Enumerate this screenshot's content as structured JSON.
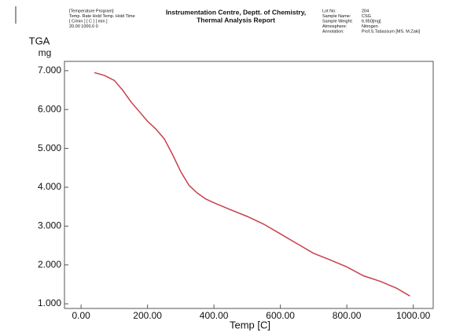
{
  "header": {
    "program": [
      "[Temperature Program]",
      "Temp. Rate  Hold Temp.   Hold Time",
      "[ C/min ]    [ C ]         [ min ]",
      "20.00          1000.0          0"
    ],
    "title": [
      "Instrumentation Centre, Deptt. of Chemistry,",
      "Thermal Analysis Report"
    ],
    "info_labels": [
      "Lot No:",
      "Sample Name:",
      "Sample Weight:",
      "Atmosphere:",
      "Annotation:"
    ],
    "info_values": [
      "204",
      "CSG",
      "6.950[mg]",
      "Nitrogen",
      "Prof.S.Tabassum [MS. M.Zaki]"
    ]
  },
  "chart_data": {
    "type": "line",
    "y_label": "TGA",
    "y_unit": "mg",
    "x_label": "Temp  [C]",
    "x": [
      40,
      70,
      100,
      125,
      150,
      175,
      200,
      225,
      250,
      275,
      300,
      325,
      350,
      375,
      400,
      450,
      500,
      550,
      600,
      650,
      700,
      750,
      800,
      850,
      900,
      950,
      990
    ],
    "series": [
      {
        "name": "TGA",
        "color": "#c8404a",
        "values": [
          6.95,
          6.88,
          6.75,
          6.5,
          6.2,
          5.95,
          5.7,
          5.5,
          5.25,
          4.85,
          4.4,
          4.05,
          3.85,
          3.7,
          3.6,
          3.42,
          3.25,
          3.05,
          2.8,
          2.55,
          2.3,
          2.13,
          1.95,
          1.72,
          1.58,
          1.4,
          1.2
        ]
      }
    ],
    "xlim": [
      -50,
      1060
    ],
    "ylim": [
      0.88,
      7.24
    ],
    "xticks": [
      {
        "value": 0,
        "label": "0.00"
      },
      {
        "value": 200,
        "label": "200.00"
      },
      {
        "value": 400,
        "label": "400.00"
      },
      {
        "value": 600,
        "label": "600.00"
      },
      {
        "value": 800,
        "label": "800.00"
      },
      {
        "value": 1000,
        "label": "1000.00"
      }
    ],
    "yticks": [
      {
        "value": 1,
        "label": "1.000"
      },
      {
        "value": 2,
        "label": "2.000"
      },
      {
        "value": 3,
        "label": "3.000"
      },
      {
        "value": 4,
        "label": "4.000"
      },
      {
        "value": 5,
        "label": "5.000"
      },
      {
        "value": 6,
        "label": "6.000"
      },
      {
        "value": 7,
        "label": "7.000"
      }
    ]
  }
}
